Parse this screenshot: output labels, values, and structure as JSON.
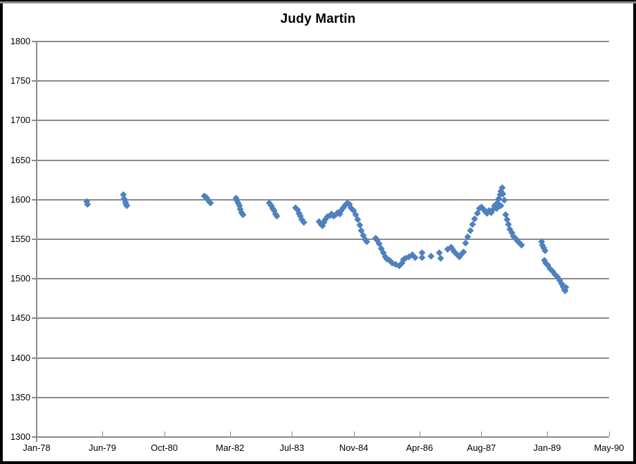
{
  "chart_data": {
    "type": "scatter",
    "title": "Judy Martin",
    "legend": "none",
    "grid": true,
    "marker_shape": "diamond",
    "colors": {
      "marker": "#4F81BD",
      "grid": "#898989",
      "axis": "#898989",
      "text": "#000000",
      "background": "#FFFFFF",
      "frame": "#000000"
    },
    "x_axis": {
      "tick_labels": [
        "Jan-78",
        "Jun-79",
        "Oct-80",
        "Mar-82",
        "Jul-83",
        "Nov-84",
        "Apr-86",
        "Aug-87",
        "Jan-89",
        "May-90"
      ],
      "tick_month_offsets": [
        0,
        17,
        33,
        50,
        66,
        82,
        99,
        115,
        132,
        148
      ],
      "range_months": [
        0,
        148
      ]
    },
    "y_axis": {
      "min": 1300,
      "max": 1800,
      "step": 50,
      "tick_labels": [
        "1800",
        "1750",
        "1700",
        "1650",
        "1600",
        "1550",
        "1500",
        "1450",
        "1400",
        "1350",
        "1300"
      ]
    },
    "series": [
      {
        "name": "Judy Martin",
        "marker": "diamond",
        "color": "#4F81BD",
        "points_format": "[months_since_Jan_1978, value]",
        "points": [
          [
            13.0,
            1598
          ],
          [
            13.2,
            1594
          ],
          [
            22.5,
            1606
          ],
          [
            22.7,
            1601
          ],
          [
            22.9,
            1597
          ],
          [
            23.1,
            1594
          ],
          [
            23.3,
            1592
          ],
          [
            43.4,
            1605
          ],
          [
            43.8,
            1603
          ],
          [
            44.2,
            1600
          ],
          [
            44.6,
            1598
          ],
          [
            45.0,
            1596
          ],
          [
            51.5,
            1602
          ],
          [
            51.8,
            1599
          ],
          [
            52.1,
            1596
          ],
          [
            52.4,
            1592
          ],
          [
            52.7,
            1588
          ],
          [
            53.0,
            1584
          ],
          [
            53.3,
            1581
          ],
          [
            60.2,
            1596
          ],
          [
            60.6,
            1592
          ],
          [
            61.0,
            1589
          ],
          [
            61.4,
            1586
          ],
          [
            61.8,
            1582
          ],
          [
            62.2,
            1579
          ],
          [
            67.0,
            1590
          ],
          [
            67.4,
            1587
          ],
          [
            67.8,
            1583
          ],
          [
            68.2,
            1579
          ],
          [
            68.6,
            1575
          ],
          [
            69.0,
            1571
          ],
          [
            73.1,
            1572
          ],
          [
            73.5,
            1569
          ],
          [
            73.9,
            1567
          ],
          [
            74.3,
            1571
          ],
          [
            74.7,
            1575
          ],
          [
            75.1,
            1578
          ],
          [
            75.8,
            1580
          ],
          [
            76.3,
            1582
          ],
          [
            76.8,
            1579
          ],
          [
            77.3,
            1581
          ],
          [
            77.8,
            1584
          ],
          [
            78.3,
            1582
          ],
          [
            78.8,
            1586
          ],
          [
            79.3,
            1590
          ],
          [
            79.8,
            1593
          ],
          [
            80.3,
            1596
          ],
          [
            80.8,
            1594
          ],
          [
            81.3,
            1590
          ],
          [
            82.0,
            1586
          ],
          [
            82.5,
            1581
          ],
          [
            83.0,
            1575
          ],
          [
            83.5,
            1568
          ],
          [
            84.0,
            1561
          ],
          [
            84.5,
            1555
          ],
          [
            85.0,
            1550
          ],
          [
            85.4,
            1547
          ],
          [
            87.6,
            1551
          ],
          [
            88.1,
            1549
          ],
          [
            88.6,
            1544
          ],
          [
            89.1,
            1538
          ],
          [
            89.6,
            1533
          ],
          [
            90.1,
            1528
          ],
          [
            90.6,
            1525
          ],
          [
            91.2,
            1523
          ],
          [
            91.9,
            1520
          ],
          [
            92.8,
            1518
          ],
          [
            93.7,
            1516
          ],
          [
            94.4,
            1520
          ],
          [
            94.9,
            1524
          ],
          [
            95.4,
            1526
          ],
          [
            96.3,
            1528
          ],
          [
            97.2,
            1530
          ],
          [
            97.9,
            1527
          ],
          [
            99.6,
            1533
          ],
          [
            99.7,
            1527
          ],
          [
            101.9,
            1529
          ],
          [
            104.2,
            1533
          ],
          [
            104.4,
            1526
          ],
          [
            106.2,
            1537
          ],
          [
            107.2,
            1540
          ],
          [
            107.6,
            1537
          ],
          [
            108.1,
            1534
          ],
          [
            108.7,
            1530
          ],
          [
            109.3,
            1528
          ],
          [
            109.9,
            1531
          ],
          [
            110.4,
            1534
          ],
          [
            110.9,
            1545
          ],
          [
            111.5,
            1553
          ],
          [
            112.1,
            1561
          ],
          [
            112.7,
            1569
          ],
          [
            113.3,
            1576
          ],
          [
            113.9,
            1583
          ],
          [
            114.5,
            1589
          ],
          [
            115.0,
            1591
          ],
          [
            115.5,
            1588
          ],
          [
            116.0,
            1585
          ],
          [
            116.5,
            1583
          ],
          [
            117.0,
            1586
          ],
          [
            117.5,
            1584
          ],
          [
            118.0,
            1588
          ],
          [
            118.4,
            1592
          ],
          [
            118.8,
            1590
          ],
          [
            119.0,
            1589
          ],
          [
            119.2,
            1596
          ],
          [
            119.5,
            1601
          ],
          [
            119.8,
            1606
          ],
          [
            120.0,
            1592
          ],
          [
            120.1,
            1611
          ],
          [
            120.3,
            1615
          ],
          [
            120.6,
            1607
          ],
          [
            120.9,
            1599
          ],
          [
            121.2,
            1581
          ],
          [
            121.6,
            1575
          ],
          [
            122.0,
            1569
          ],
          [
            122.4,
            1563
          ],
          [
            122.8,
            1558
          ],
          [
            123.3,
            1554
          ],
          [
            123.8,
            1551
          ],
          [
            124.3,
            1548
          ],
          [
            124.8,
            1545
          ],
          [
            125.3,
            1543
          ],
          [
            130.5,
            1547
          ],
          [
            130.8,
            1543
          ],
          [
            131.1,
            1539
          ],
          [
            131.4,
            1536
          ],
          [
            131.2,
            1523
          ],
          [
            131.7,
            1520
          ],
          [
            132.2,
            1517
          ],
          [
            132.8,
            1513
          ],
          [
            133.4,
            1509
          ],
          [
            134.0,
            1506
          ],
          [
            134.6,
            1502
          ],
          [
            135.2,
            1498
          ],
          [
            135.7,
            1494
          ],
          [
            136.1,
            1490
          ],
          [
            136.4,
            1487
          ],
          [
            136.7,
            1485
          ],
          [
            136.9,
            1489
          ]
        ]
      }
    ]
  }
}
